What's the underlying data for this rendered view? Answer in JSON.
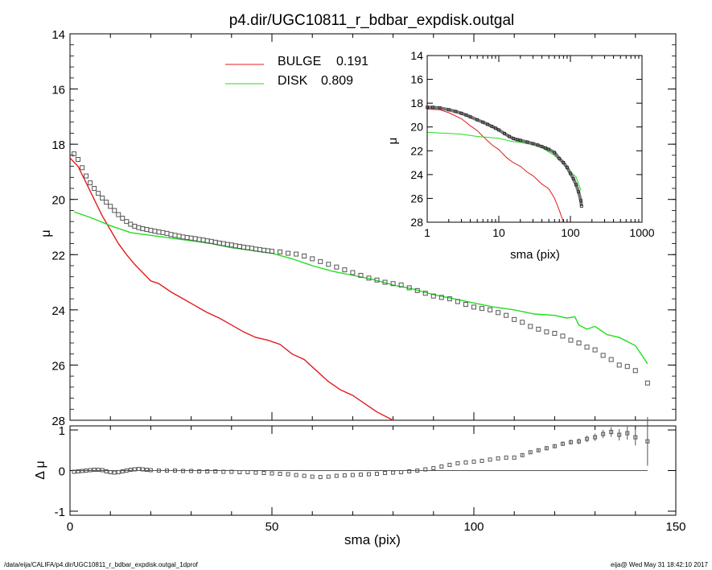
{
  "footer": {
    "left": "/data/eija/CALIFA/p4.dir/UGC10811_r_bdbar_expdisk.outgal_1dprof",
    "right": "eija@  Wed May 31 18:42:10 2017"
  },
  "chart_data": [
    {
      "type": "line",
      "title": "p4.dir/UGC10811_r_bdbar_expdisk.outgal",
      "xlabel": "",
      "ylabel": "μ",
      "xlim": [
        0,
        150
      ],
      "ylim": [
        28,
        14
      ],
      "y_inverted": true,
      "xticks": [
        "0",
        "50",
        "100",
        "150"
      ],
      "yticks": [
        "14",
        "16",
        "18",
        "20",
        "22",
        "24",
        "26",
        "28"
      ],
      "legend_position": "top-center",
      "legend": [
        {
          "name": "BULGE",
          "value": "0.191",
          "color": "#e41a1c"
        },
        {
          "name": "DISK",
          "value": "0.809",
          "color": "#22dd22"
        }
      ],
      "series": [
        {
          "name": "BULGE",
          "color": "#e41a1c",
          "x": [
            0,
            2,
            4,
            6,
            8,
            10,
            12,
            14,
            16,
            18,
            20,
            22,
            25,
            28,
            31,
            34,
            37,
            40,
            43,
            46,
            49,
            52,
            55,
            58,
            61,
            64,
            67,
            70,
            73,
            76,
            80
          ],
          "y": [
            18.5,
            18.8,
            19.4,
            20.0,
            20.6,
            21.1,
            21.6,
            22.0,
            22.35,
            22.65,
            22.95,
            23.05,
            23.35,
            23.6,
            23.85,
            24.1,
            24.3,
            24.55,
            24.8,
            25.0,
            25.1,
            25.25,
            25.6,
            25.8,
            26.2,
            26.6,
            26.9,
            27.1,
            27.4,
            27.7,
            28.0
          ]
        },
        {
          "name": "DISK",
          "color": "#22dd22",
          "x": [
            1,
            5,
            10,
            15,
            20,
            25,
            30,
            35,
            40,
            45,
            50,
            55,
            60,
            65,
            70,
            75,
            80,
            85,
            90,
            95,
            100,
            105,
            110,
            115,
            120,
            123,
            125,
            126,
            128,
            130,
            133,
            136,
            140,
            143
          ],
          "y": [
            20.45,
            20.65,
            20.95,
            21.2,
            21.3,
            21.4,
            21.5,
            21.6,
            21.75,
            21.85,
            21.95,
            22.15,
            22.4,
            22.6,
            22.75,
            22.9,
            23.1,
            23.25,
            23.45,
            23.6,
            23.75,
            23.9,
            24.0,
            24.15,
            24.2,
            24.3,
            24.25,
            24.55,
            24.7,
            24.6,
            24.9,
            25.0,
            25.3,
            25.95
          ]
        },
        {
          "name": "data",
          "color": "#555555",
          "x": [
            1,
            2,
            3,
            4,
            5,
            6,
            7,
            8,
            9,
            10,
            11,
            12,
            13,
            14,
            15,
            16,
            17,
            18,
            19,
            20,
            21,
            22,
            23,
            24,
            25,
            26,
            27,
            28,
            29,
            30,
            31,
            32,
            33,
            34,
            35,
            36,
            37,
            38,
            39,
            40,
            41,
            42,
            43,
            44,
            45,
            46,
            47,
            48,
            49,
            50,
            52,
            54,
            56,
            58,
            60,
            62,
            64,
            66,
            68,
            70,
            72,
            74,
            76,
            78,
            80,
            82,
            84,
            86,
            88,
            90,
            92,
            94,
            96,
            98,
            100,
            102,
            104,
            106,
            108,
            110,
            112,
            114,
            116,
            118,
            120,
            122,
            124,
            126,
            128,
            130,
            132,
            134,
            136,
            138,
            140,
            143
          ],
          "y": [
            18.35,
            18.55,
            18.85,
            19.15,
            19.4,
            19.6,
            19.78,
            19.95,
            20.1,
            20.25,
            20.4,
            20.55,
            20.68,
            20.8,
            20.9,
            20.97,
            21.02,
            21.06,
            21.09,
            21.12,
            21.15,
            21.18,
            21.2,
            21.23,
            21.27,
            21.3,
            21.33,
            21.36,
            21.38,
            21.4,
            21.42,
            21.45,
            21.47,
            21.5,
            21.52,
            21.55,
            21.58,
            21.6,
            21.63,
            21.65,
            21.68,
            21.7,
            21.73,
            21.75,
            21.77,
            21.8,
            21.82,
            21.84,
            21.86,
            21.88,
            21.9,
            21.95,
            21.98,
            22.05,
            22.15,
            22.25,
            22.35,
            22.45,
            22.55,
            22.65,
            22.75,
            22.85,
            22.92,
            23.0,
            23.05,
            23.1,
            23.2,
            23.3,
            23.4,
            23.5,
            23.55,
            23.6,
            23.7,
            23.8,
            23.9,
            23.95,
            24.0,
            24.1,
            24.2,
            24.35,
            24.45,
            24.6,
            24.7,
            24.8,
            24.85,
            24.95,
            25.1,
            25.2,
            25.35,
            25.45,
            25.65,
            25.8,
            26.0,
            26.05,
            26.2,
            26.65
          ]
        }
      ]
    },
    {
      "type": "scatter",
      "title": "",
      "xlabel": "sma (pix)",
      "ylabel": "Δ μ",
      "xlim": [
        0,
        150
      ],
      "ylim": [
        -1.1,
        1.1
      ],
      "xticks": [
        "0",
        "50",
        "100",
        "150"
      ],
      "yticks": [
        "-1",
        "0",
        "1"
      ],
      "series": [
        {
          "name": "residual",
          "color": "#555555",
          "x": [
            1,
            2,
            3,
            4,
            5,
            6,
            7,
            8,
            9,
            10,
            11,
            12,
            13,
            14,
            15,
            16,
            17,
            18,
            19,
            20,
            22,
            24,
            26,
            28,
            30,
            32,
            34,
            36,
            38,
            40,
            42,
            44,
            46,
            48,
            50,
            52,
            54,
            56,
            58,
            60,
            62,
            64,
            66,
            68,
            70,
            72,
            74,
            76,
            78,
            80,
            82,
            84,
            86,
            88,
            90,
            92,
            94,
            96,
            98,
            100,
            102,
            104,
            106,
            108,
            110,
            112,
            114,
            116,
            118,
            120,
            122,
            124,
            126,
            128,
            130,
            132,
            134,
            136,
            138,
            140,
            143
          ],
          "y": [
            -0.03,
            -0.02,
            -0.01,
            0.0,
            0.01,
            0.02,
            0.02,
            0.01,
            -0.02,
            -0.04,
            -0.05,
            -0.04,
            -0.02,
            0.0,
            0.02,
            0.03,
            0.04,
            0.03,
            0.02,
            0.01,
            0.0,
            0.0,
            0.0,
            -0.01,
            -0.01,
            -0.02,
            -0.02,
            -0.02,
            -0.03,
            -0.03,
            -0.04,
            -0.04,
            -0.05,
            -0.06,
            -0.07,
            -0.08,
            -0.09,
            -0.11,
            -0.13,
            -0.15,
            -0.16,
            -0.15,
            -0.13,
            -0.12,
            -0.11,
            -0.1,
            -0.09,
            -0.08,
            -0.06,
            -0.05,
            -0.04,
            -0.02,
            0.0,
            0.03,
            0.06,
            0.1,
            0.14,
            0.18,
            0.2,
            0.22,
            0.24,
            0.27,
            0.3,
            0.32,
            0.32,
            0.38,
            0.45,
            0.5,
            0.55,
            0.6,
            0.66,
            0.7,
            0.72,
            0.78,
            0.82,
            0.9,
            0.95,
            0.88,
            0.92,
            0.82,
            0.72
          ],
          "yerr": [
            0.01,
            0.01,
            0.01,
            0.01,
            0.01,
            0.01,
            0.01,
            0.01,
            0.01,
            0.01,
            0.01,
            0.01,
            0.01,
            0.01,
            0.01,
            0.01,
            0.01,
            0.01,
            0.01,
            0.01,
            0.01,
            0.01,
            0.01,
            0.01,
            0.01,
            0.01,
            0.01,
            0.01,
            0.01,
            0.01,
            0.01,
            0.01,
            0.01,
            0.01,
            0.01,
            0.01,
            0.01,
            0.01,
            0.01,
            0.01,
            0.01,
            0.01,
            0.01,
            0.01,
            0.01,
            0.01,
            0.01,
            0.01,
            0.01,
            0.01,
            0.01,
            0.01,
            0.01,
            0.01,
            0.01,
            0.01,
            0.01,
            0.01,
            0.01,
            0.01,
            0.01,
            0.01,
            0.01,
            0.01,
            0.01,
            0.02,
            0.02,
            0.03,
            0.03,
            0.04,
            0.05,
            0.06,
            0.07,
            0.08,
            0.09,
            0.1,
            0.12,
            0.14,
            0.16,
            0.2,
            0.6
          ]
        }
      ],
      "reference_line_y": 0
    },
    {
      "type": "line",
      "title": "",
      "xlabel": "sma (pix)",
      "ylabel": "μ",
      "xscale": "log",
      "xlim": [
        1,
        1000
      ],
      "ylim": [
        28,
        14
      ],
      "y_inverted": true,
      "xticks": [
        "1",
        "10",
        "100",
        "1000"
      ],
      "yticks": [
        "14",
        "16",
        "18",
        "20",
        "22",
        "24",
        "26",
        "28"
      ],
      "series": [
        {
          "name": "BULGE",
          "color": "#e41a1c",
          "x": [
            1,
            1.5,
            2,
            3,
            4,
            5,
            6,
            8,
            10,
            13,
            16,
            20,
            25,
            30,
            40,
            50,
            60,
            70,
            80
          ],
          "y": [
            18.5,
            18.55,
            18.8,
            19.3,
            19.9,
            20.3,
            20.8,
            21.5,
            21.9,
            22.6,
            23.0,
            23.3,
            23.8,
            24.1,
            24.8,
            25.2,
            26.0,
            27.0,
            28.0
          ]
        },
        {
          "name": "DISK",
          "color": "#22dd22",
          "x": [
            1,
            2,
            3,
            5,
            8,
            10,
            15,
            20,
            30,
            40,
            60,
            80,
            100,
            120,
            140
          ],
          "y": [
            20.45,
            20.55,
            20.6,
            20.8,
            20.9,
            20.95,
            21.2,
            21.3,
            21.5,
            21.75,
            22.4,
            23.1,
            23.75,
            24.2,
            25.3
          ]
        },
        {
          "name": "data",
          "color": "#555555",
          "x": [
            1,
            1.2,
            1.5,
            2,
            2.5,
            3,
            3.5,
            4,
            5,
            6,
            7,
            8,
            9,
            10,
            12,
            14,
            16,
            18,
            20,
            25,
            30,
            35,
            40,
            45,
            50,
            60,
            70,
            80,
            90,
            100,
            110,
            120,
            130,
            140,
            143
          ],
          "y": [
            18.35,
            18.35,
            18.4,
            18.55,
            18.7,
            18.85,
            19.0,
            19.15,
            19.4,
            19.6,
            19.78,
            19.95,
            20.1,
            20.25,
            20.55,
            20.8,
            20.97,
            21.06,
            21.12,
            21.27,
            21.4,
            21.52,
            21.65,
            21.77,
            21.88,
            22.15,
            22.65,
            23.0,
            23.4,
            23.9,
            24.35,
            24.85,
            25.45,
            26.2,
            26.65
          ]
        }
      ]
    }
  ]
}
